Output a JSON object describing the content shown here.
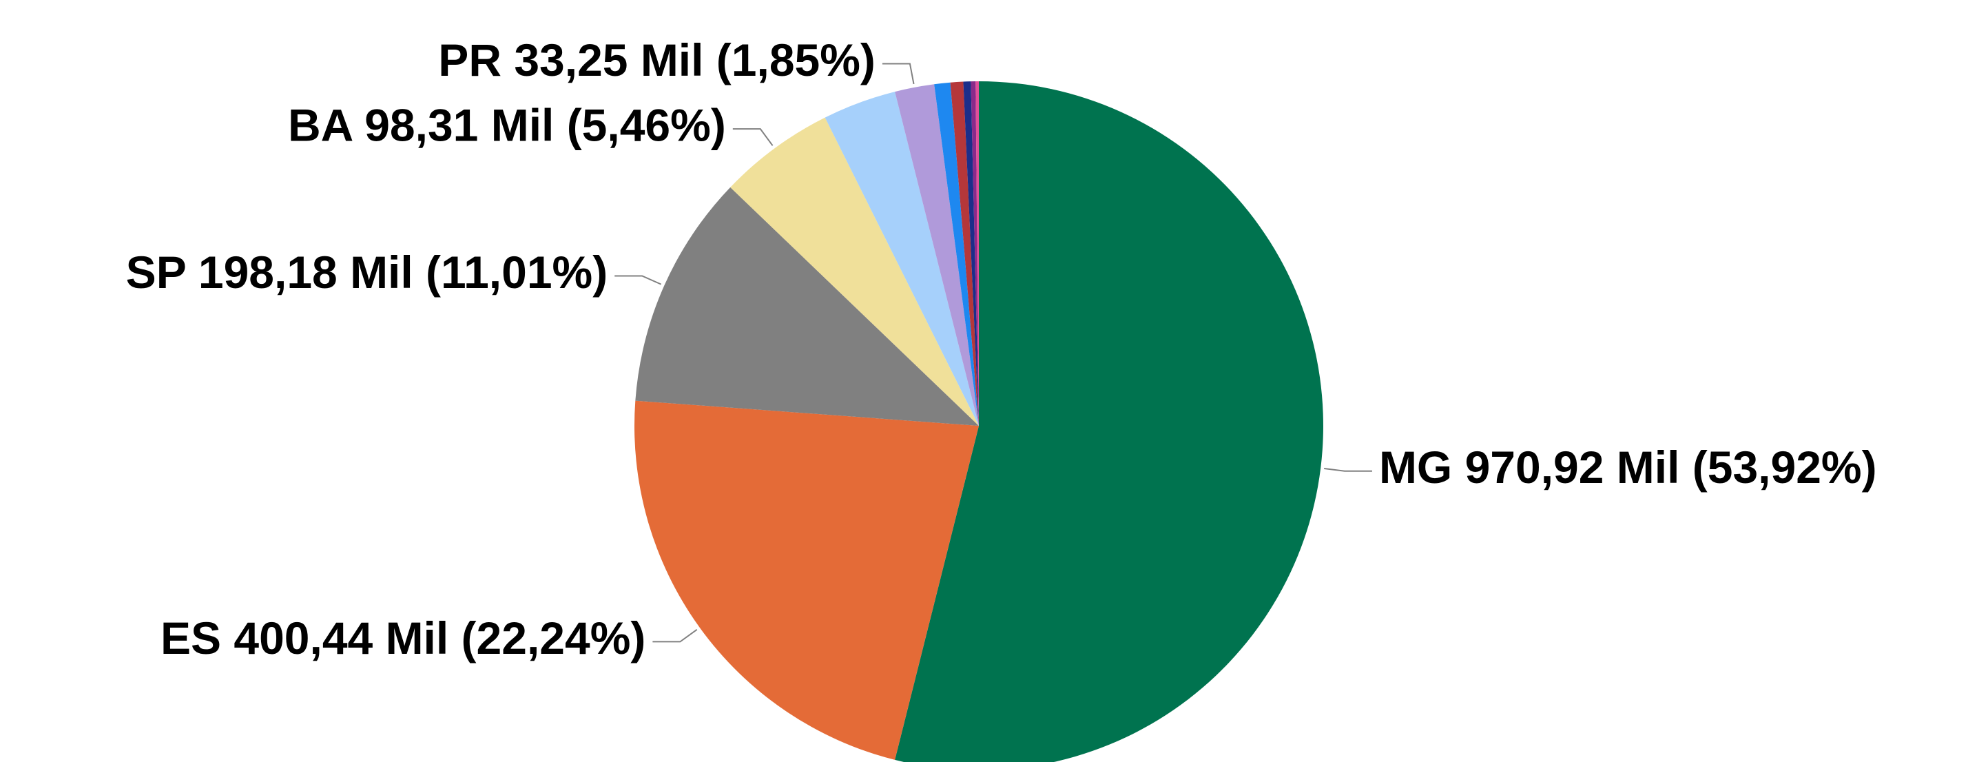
{
  "chart_data": {
    "type": "pie",
    "value_labels": [
      "MG 970,92 Mil (53,92%)",
      "ES 400,44 Mil (22,24%)",
      "SP 198,18 Mil (11,01%)",
      "BA 98,31 Mil (5,46%)",
      null,
      "PR 33,25 Mil (1,85%)",
      null,
      null,
      null,
      null,
      null
    ],
    "values": [
      53.92,
      22.24,
      11.01,
      5.46,
      3.45,
      1.85,
      0.75,
      0.6,
      0.35,
      0.22,
      0.15
    ],
    "colors": [
      "#00734f",
      "#e46b37",
      "#808080",
      "#f0e09a",
      "#a6d0fb",
      "#b09ada",
      "#1e88f0",
      "#b5373a",
      "#1c2e8a",
      "#8a2a8a",
      "#e0509a"
    ]
  }
}
